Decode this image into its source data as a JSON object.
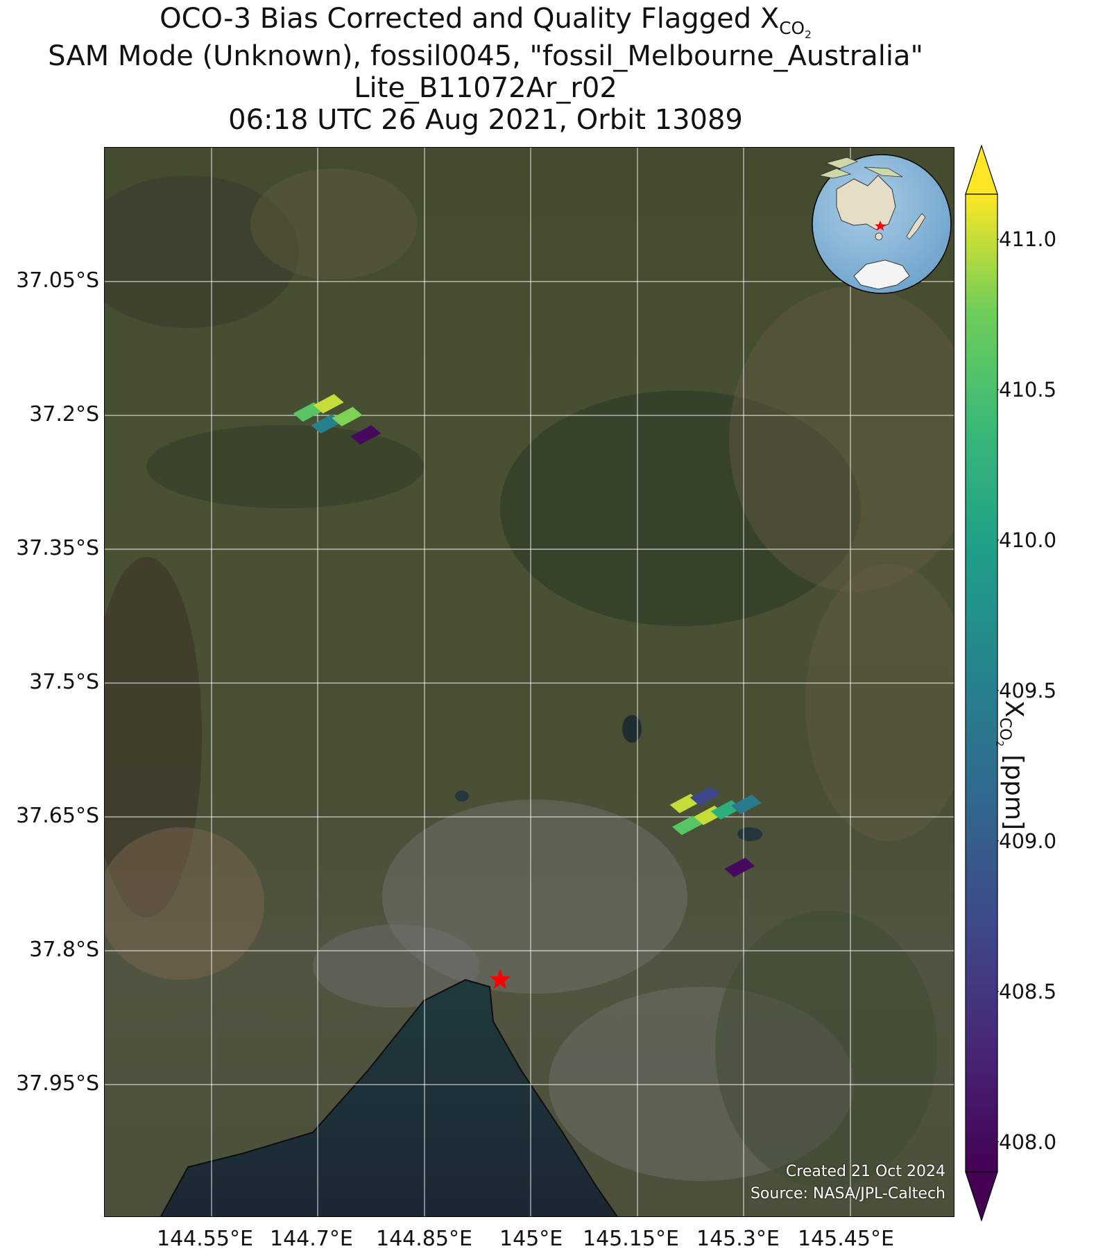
{
  "title": {
    "line1_prefix": "OCO-3 Bias Corrected and Quality Flagged X",
    "line1_sub": "CO",
    "line1_sub2": "2",
    "line2": "SAM Mode (Unknown), fossil0045, \"fossil_Melbourne_Australia\"",
    "line3": "Lite_B11072Ar_r02",
    "line4": "06:18 UTC 26 Aug 2021, Orbit 13089"
  },
  "map": {
    "lat_labels": [
      "37.05°S",
      "37.2°S",
      "37.35°S",
      "37.5°S",
      "37.65°S",
      "37.8°S",
      "37.95°S"
    ],
    "lon_labels": [
      "144.55°E",
      "144.7°E",
      "144.85°E",
      "145°E",
      "145.15°E",
      "145.3°E",
      "145.45°E"
    ],
    "credit_created": "Created 21 Oct 2024",
    "credit_source": "Source: NASA/JPL-Caltech",
    "target_marker": "red-star",
    "inset_globe": "globe centered on Australia with red star at Melbourne"
  },
  "colorbar": {
    "label_prefix": "X",
    "label_sub": "CO",
    "label_sub2": "2",
    "label_suffix": " [ppm]",
    "ticks": [
      "408.0",
      "408.5",
      "409.0",
      "409.5",
      "410.0",
      "410.5",
      "411.0"
    ],
    "colormap": "viridis",
    "vmin": 407.9,
    "vmax": 411.15,
    "extend": "both"
  },
  "chart_data": {
    "type": "heatmap",
    "xlim": [
      144.43,
      145.57
    ],
    "ylim": [
      -38.07,
      -36.9
    ],
    "soundings": [
      {
        "lon": 144.703,
        "lat": -37.189,
        "value": 410.6
      },
      {
        "lon": 144.73,
        "lat": -37.18,
        "value": 411.0
      },
      {
        "lon": 144.727,
        "lat": -37.202,
        "value": 409.5
      },
      {
        "lon": 144.755,
        "lat": -37.194,
        "value": 410.8
      },
      {
        "lon": 144.78,
        "lat": -37.214,
        "value": 408.0
      },
      {
        "lon": 145.208,
        "lat": -37.617,
        "value": 411.0
      },
      {
        "lon": 145.235,
        "lat": -37.609,
        "value": 408.7
      },
      {
        "lon": 145.211,
        "lat": -37.641,
        "value": 410.6
      },
      {
        "lon": 145.24,
        "lat": -37.63,
        "value": 411.0
      },
      {
        "lon": 145.263,
        "lat": -37.624,
        "value": 410.2
      },
      {
        "lon": 145.29,
        "lat": -37.618,
        "value": 409.4
      },
      {
        "lon": 145.281,
        "lat": -37.687,
        "value": 408.0
      }
    ],
    "target": {
      "lon": 144.96,
      "lat": -37.81
    }
  }
}
